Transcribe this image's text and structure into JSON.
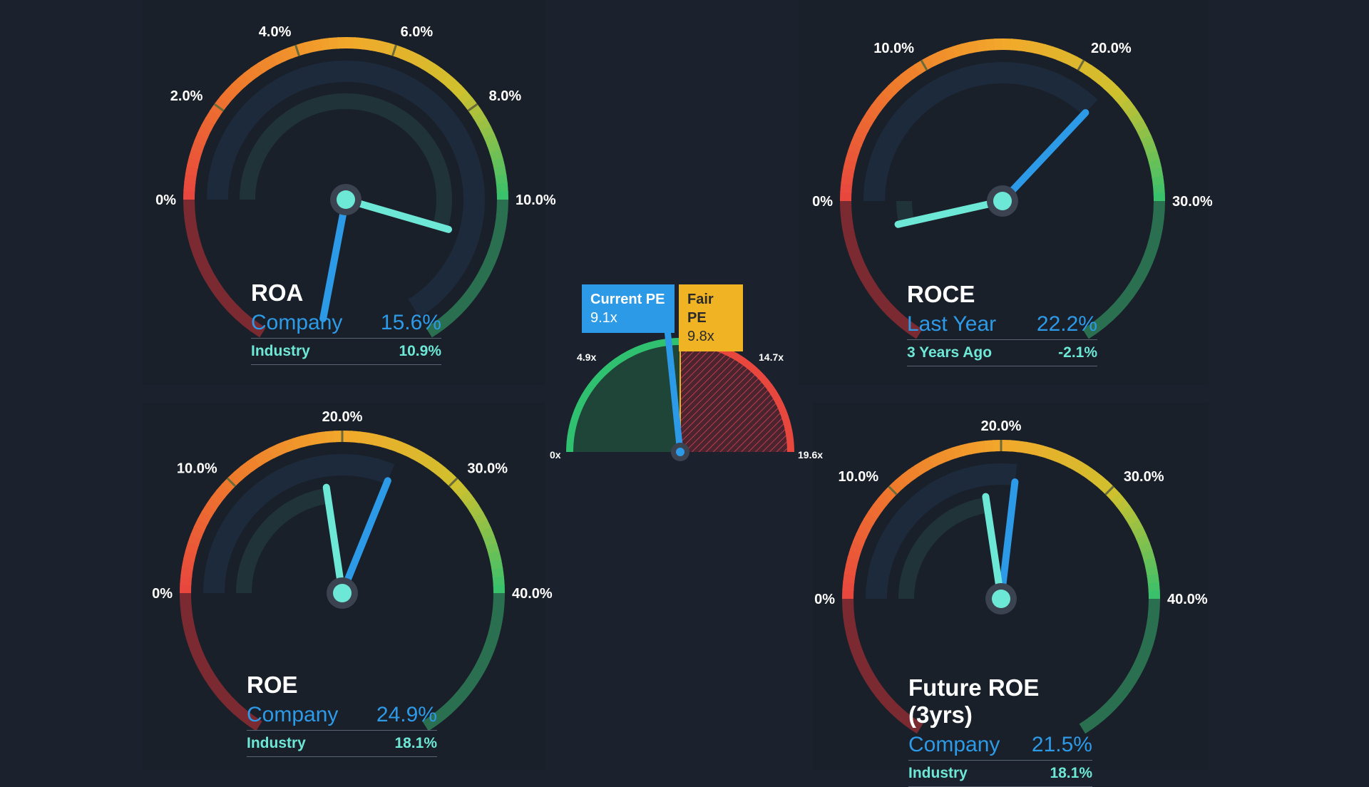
{
  "colors": {
    "background": "#1b222d",
    "company": "#2d9ae8",
    "industry": "#6ee8d6",
    "zone_bad": "#e8473e",
    "zone_mid": "#f2a92b",
    "zone_good": "#2fc16f"
  },
  "chart_data": [
    {
      "type": "gauge",
      "title": "ROA",
      "ticks": [
        "0%",
        "2.0%",
        "4.0%",
        "6.0%",
        "8.0%",
        "10.0%"
      ],
      "scale_max": 10,
      "series": [
        {
          "name": "Company",
          "value": 15.6,
          "label": "15.6%"
        },
        {
          "name": "Industry",
          "value": 10.9,
          "label": "10.9%"
        }
      ]
    },
    {
      "type": "gauge",
      "title": "ROCE",
      "ticks": [
        "0%",
        "10.0%",
        "20.0%",
        "30.0%"
      ],
      "scale_max": 30,
      "series": [
        {
          "name": "Last Year",
          "value": 22.2,
          "label": "22.2%"
        },
        {
          "name": "3 Years Ago",
          "value": -2.1,
          "label": "-2.1%"
        }
      ]
    },
    {
      "type": "gauge",
      "title": "ROE",
      "ticks": [
        "0%",
        "10.0%",
        "20.0%",
        "30.0%",
        "40.0%"
      ],
      "scale_max": 40,
      "series": [
        {
          "name": "Company",
          "value": 24.9,
          "label": "24.9%"
        },
        {
          "name": "Industry",
          "value": 18.1,
          "label": "18.1%"
        }
      ]
    },
    {
      "type": "gauge",
      "title": "Future ROE (3yrs)",
      "ticks": [
        "0%",
        "10.0%",
        "20.0%",
        "30.0%",
        "40.0%"
      ],
      "scale_max": 40,
      "series": [
        {
          "name": "Company",
          "value": 21.5,
          "label": "21.5%"
        },
        {
          "name": "Industry",
          "value": 18.1,
          "label": "18.1%"
        }
      ]
    },
    {
      "type": "gauge",
      "title": "",
      "ticks": [
        "0x",
        "4.9x",
        "14.7x",
        "19.6x"
      ],
      "range": [
        0,
        19.6
      ],
      "current": {
        "name": "Current PE",
        "value": 9.1,
        "label": "9.1x"
      },
      "fair": {
        "name": "Fair PE",
        "value": 9.8,
        "label": "9.8x"
      }
    }
  ]
}
